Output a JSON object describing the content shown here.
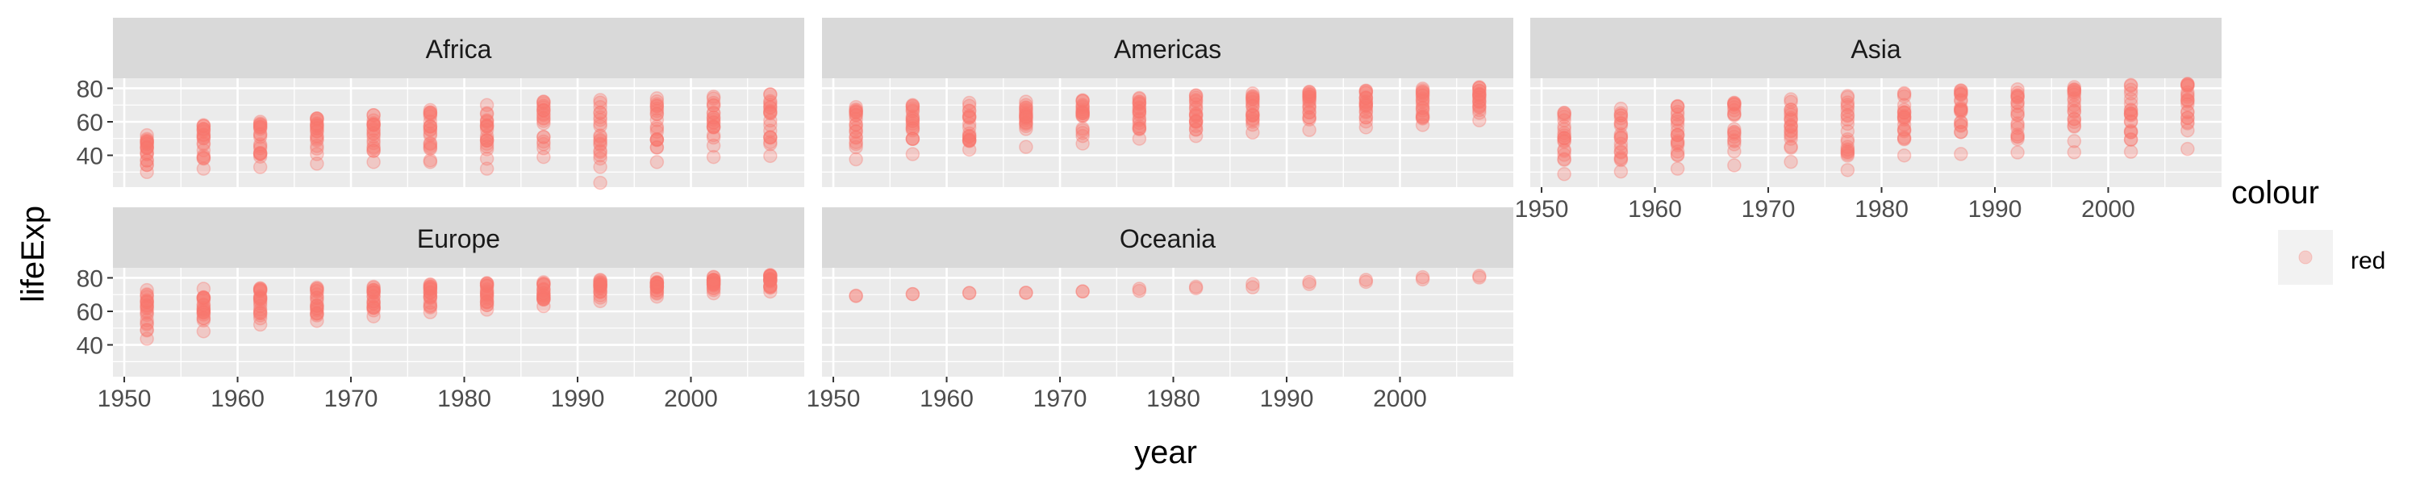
{
  "colors": {
    "panel_bg": "#ebebeb",
    "strip_bg": "#d9d9d9",
    "grid_major": "#ffffff",
    "point": "#f8766d",
    "text_dark": "#1a1a1a",
    "tick_text": "#4d4d4d",
    "tick_mark": "#333333"
  },
  "chart_data": {
    "type": "scatter",
    "facet_by": "continent",
    "xlabel": "year",
    "ylabel": "lifeExp",
    "xlim": [
      1949,
      2010
    ],
    "ylim": [
      21,
      86
    ],
    "x_ticks": [
      1950,
      1960,
      1970,
      1980,
      1990,
      2000
    ],
    "y_ticks": [
      40,
      60,
      80
    ],
    "years": [
      1952,
      1957,
      1962,
      1967,
      1972,
      1977,
      1982,
      1987,
      1992,
      1997,
      2002,
      2007
    ],
    "grid": true,
    "point_alpha": 0.3,
    "legend": {
      "title": "colour",
      "placement": "right",
      "entries": [
        "red"
      ]
    },
    "facets": [
      {
        "name": "Africa",
        "min": [
          30,
          32,
          33,
          35,
          36,
          37,
          38,
          39,
          23.6,
          36,
          39,
          39.6
        ],
        "max": [
          52,
          58,
          60,
          62,
          64,
          67,
          70,
          72,
          73,
          74,
          75,
          76.4
        ],
        "extra": [
          [
            1982,
            32
          ],
          [
            1977,
            36
          ],
          [
            1992,
            40
          ]
        ]
      },
      {
        "name": "Americas",
        "min": [
          37.6,
          40.7,
          43.4,
          45,
          47,
          49.9,
          51.5,
          53.6,
          55.1,
          56.7,
          58.1,
          60.9
        ],
        "max": [
          68.8,
          70,
          71.3,
          72,
          72.9,
          74.2,
          75.8,
          76.9,
          77.9,
          78.6,
          79.8,
          80.7
        ],
        "extra": []
      },
      {
        "name": "Asia",
        "min": [
          28.8,
          30.3,
          32,
          34,
          36.1,
          31.2,
          39.9,
          40.8,
          41.7,
          41.8,
          42.1,
          43.8
        ],
        "max": [
          65.4,
          67.8,
          69.4,
          71.4,
          73.4,
          75.4,
          77.1,
          78.7,
          79.4,
          80.7,
          82,
          82.6
        ],
        "extra": [
          [
            1977,
            45
          ],
          [
            1982,
            50
          ],
          [
            1987,
            54
          ],
          [
            1962,
            40
          ]
        ]
      },
      {
        "name": "Europe",
        "min": [
          43.6,
          48.1,
          52.1,
          54.3,
          57,
          59.5,
          61,
          63.1,
          66.1,
          68.8,
          70.8,
          71.8
        ],
        "max": [
          72.7,
          73.5,
          73.7,
          74.2,
          74.7,
          76.1,
          76.9,
          77.4,
          78.8,
          79.4,
          80.6,
          81.8
        ],
        "extra": [
          [
            1952,
            53
          ],
          [
            1957,
            56
          ],
          [
            1962,
            59
          ]
        ]
      },
      {
        "name": "Oceania",
        "min": [
          69.1,
          70.3,
          70.9,
          71.1,
          71.9,
          72.2,
          73.8,
          74.3,
          76.3,
          77.6,
          79.1,
          80.2
        ],
        "max": [
          69.4,
          70.3,
          71,
          71.1,
          71.9,
          73.5,
          74.7,
          76.3,
          77.6,
          78.8,
          80.4,
          81.2
        ],
        "extra": []
      }
    ]
  }
}
